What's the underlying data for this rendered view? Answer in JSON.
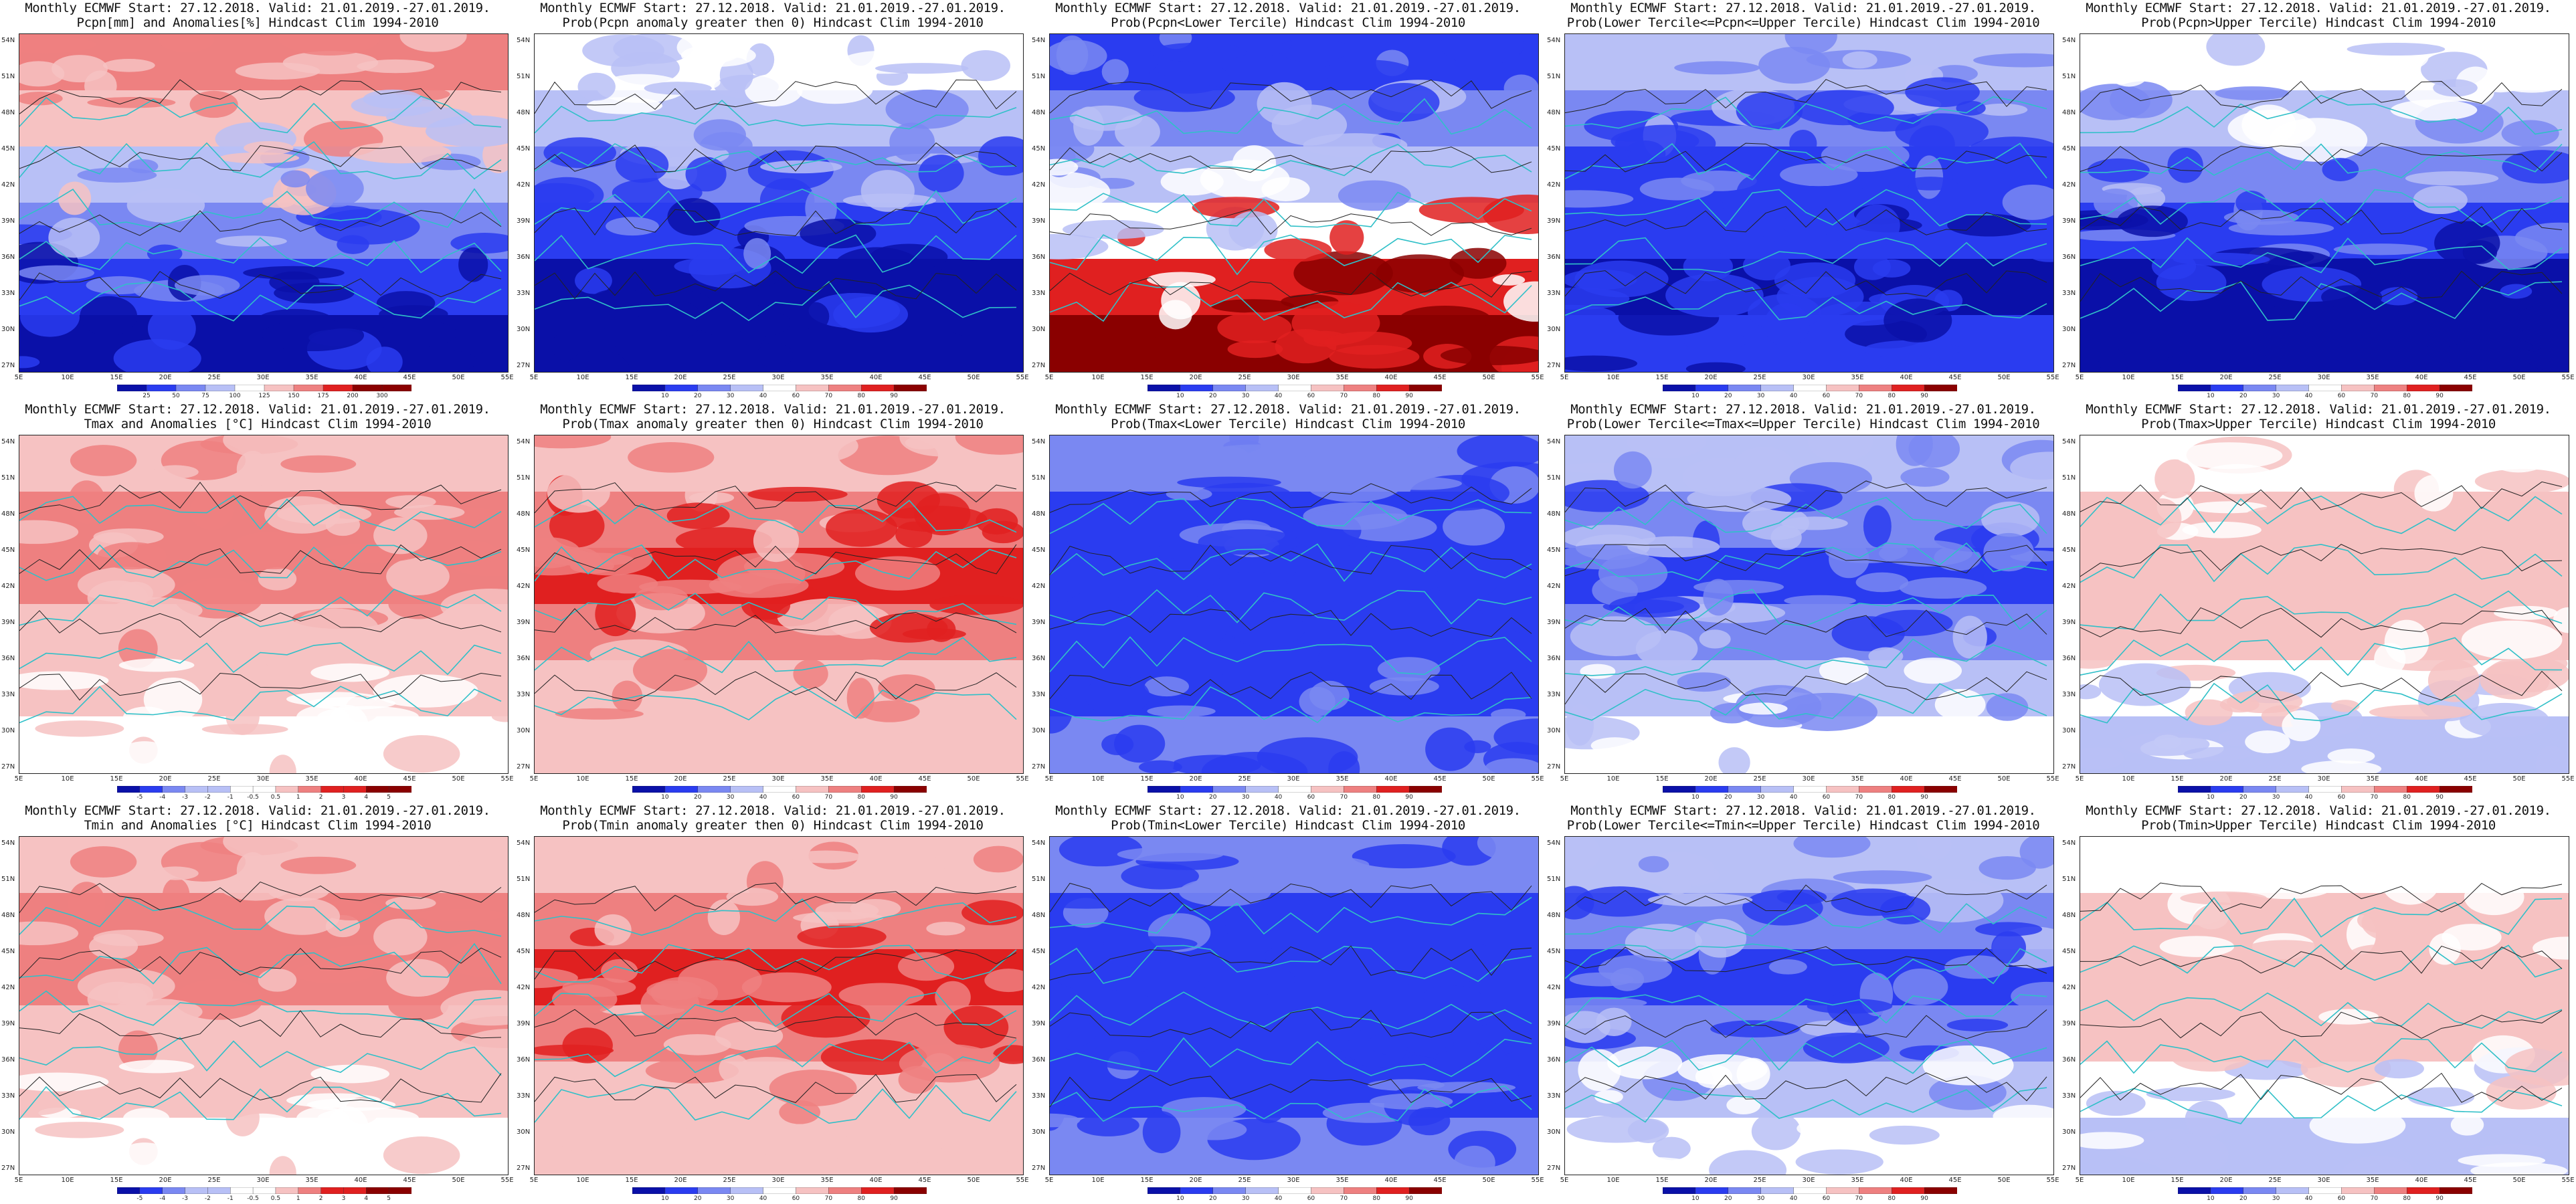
{
  "lat_labels": [
    "54N",
    "51N",
    "48N",
    "45N",
    "42N",
    "39N",
    "36N",
    "33N",
    "30N",
    "27N"
  ],
  "lon_labels": [
    "5E",
    "10E",
    "15E",
    "20E",
    "25E",
    "30E",
    "35E",
    "40E",
    "45E",
    "50E",
    "55E"
  ],
  "scales": {
    "pcpn_anom": [
      "25",
      "50",
      "75",
      "100",
      "125",
      "150",
      "175",
      "200",
      "300"
    ],
    "prob": [
      "10",
      "20",
      "30",
      "40",
      "60",
      "70",
      "80",
      "90"
    ],
    "temp_anom": [
      "-5",
      "-4",
      "-3",
      "-2",
      "-1",
      "-0.5",
      "0.5",
      "1",
      "2",
      "3",
      "4",
      "5"
    ]
  },
  "colors": {
    "deep_blue": "#0a10a8",
    "blue": "#2a3cf0",
    "mid_blue": "#7a88f2",
    "light_blue": "#b8c0f6",
    "white": "#ffffff",
    "light_red": "#f6c2c2",
    "mid_red": "#ee8080",
    "red": "#e02020",
    "dark_red": "#8a0000",
    "coast": "#30c0c8",
    "contour": "#222222"
  },
  "panels": [
    {
      "line1": "Monthly ECMWF Start: 27.12.2018. Valid: 21.01.2019.-27.01.2019.",
      "line2": "Pcpn[mm] and Anomalies[%] Hindcast Clim 1994-2010",
      "scale": "pcpn_anom",
      "pattern": "pcpn_anom"
    },
    {
      "line1": "Monthly ECMWF Start: 27.12.2018. Valid: 21.01.2019.-27.01.2019.",
      "line2": "Prob(Pcpn anomaly greater then 0) Hindcast Clim 1994-2010",
      "scale": "prob",
      "pattern": "pcpn_prob"
    },
    {
      "line1": "Monthly ECMWF Start: 27.12.2018. Valid: 21.01.2019.-27.01.2019.",
      "line2": "Prob(Pcpn<Lower Tercile) Hindcast Clim 1994-2010",
      "scale": "prob",
      "pattern": "pcpn_low"
    },
    {
      "line1": "Monthly ECMWF Start: 27.12.2018. Valid: 21.01.2019.-27.01.2019.",
      "line2": "Prob(Lower Tercile<=Pcpn<=Upper Tercile) Hindcast Clim 1994-2010",
      "scale": "prob",
      "pattern": "pcpn_mid"
    },
    {
      "line1": "Monthly ECMWF Start: 27.12.2018. Valid: 21.01.2019.-27.01.2019.",
      "line2": "Prob(Pcpn>Upper Tercile) Hindcast Clim 1994-2010",
      "scale": "prob",
      "pattern": "pcpn_up"
    },
    {
      "line1": "Monthly ECMWF Start: 27.12.2018. Valid: 21.01.2019.-27.01.2019.",
      "line2": "Tmax and Anomalies [°C] Hindcast Clim 1994-2010",
      "scale": "temp_anom",
      "pattern": "warm"
    },
    {
      "line1": "Monthly ECMWF Start: 27.12.2018. Valid: 21.01.2019.-27.01.2019.",
      "line2": "Prob(Tmax anomaly greater then 0) Hindcast Clim 1994-2010",
      "scale": "prob",
      "pattern": "warm_strong"
    },
    {
      "line1": "Monthly ECMWF Start: 27.12.2018. Valid: 21.01.2019.-27.01.2019.",
      "line2": "Prob(Tmax<Lower Tercile) Hindcast Clim 1994-2010",
      "scale": "prob",
      "pattern": "cold_blue"
    },
    {
      "line1": "Monthly ECMWF Start: 27.12.2018. Valid: 21.01.2019.-27.01.2019.",
      "line2": "Prob(Lower Tercile<=Tmax<=Upper Tercile) Hindcast Clim 1994-2010",
      "scale": "prob",
      "pattern": "mid_blue"
    },
    {
      "line1": "Monthly ECMWF Start: 27.12.2018. Valid: 21.01.2019.-27.01.2019.",
      "line2": "Prob(Tmax>Upper Tercile) Hindcast Clim 1994-2010",
      "scale": "prob",
      "pattern": "up_mixed"
    },
    {
      "line1": "Monthly ECMWF Start: 27.12.2018. Valid: 21.01.2019.-27.01.2019.",
      "line2": "Tmin and Anomalies [°C] Hindcast Clim 1994-2010",
      "scale": "temp_anom",
      "pattern": "warm"
    },
    {
      "line1": "Monthly ECMWF Start: 27.12.2018. Valid: 21.01.2019.-27.01.2019.",
      "line2": "Prob(Tmin anomaly greater then 0) Hindcast Clim 1994-2010",
      "scale": "prob",
      "pattern": "warm_strong"
    },
    {
      "line1": "Monthly ECMWF Start: 27.12.2018. Valid: 21.01.2019.-27.01.2019.",
      "line2": "Prob(Tmin<Lower Tercile) Hindcast Clim 1994-2010",
      "scale": "prob",
      "pattern": "cold_blue"
    },
    {
      "line1": "Monthly ECMWF Start: 27.12.2018. Valid: 21.01.2019.-27.01.2019.",
      "line2": "Prob(Lower Tercile<=Tmin<=Upper Tercile) Hindcast Clim 1994-2010",
      "scale": "prob",
      "pattern": "mid_blue"
    },
    {
      "line1": "Monthly ECMWF Start: 27.12.2018. Valid: 21.01.2019.-27.01.2019.",
      "line2": "Prob(Tmin>Upper Tercile) Hindcast Clim 1994-2010",
      "scale": "prob",
      "pattern": "up_mixed"
    }
  ]
}
